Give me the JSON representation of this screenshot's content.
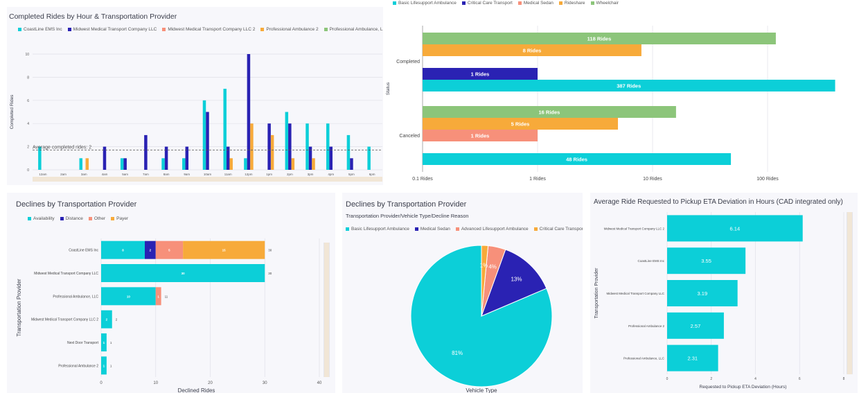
{
  "colors": {
    "teal": "#0ccfd8",
    "navy": "#2a22b3",
    "salmon": "#f7907a",
    "orange": "#f7aa3a",
    "green": "#8cc57a",
    "grid": "#e0e0e8",
    "text": "#3a3d4a"
  },
  "panel1": {
    "title": "Completed Rides by Hour & Transportation Provider",
    "legend": [
      "CoastLine EMS Inc",
      "Midwest Medical Transport Company LLC",
      "Midwest Medical Transport Company LLC 2",
      "Professional Ambulance 2",
      "Professional Ambulance, LLC"
    ],
    "chart_data": {
      "type": "bar",
      "title": "Completed Rides by Hour & Transportation Provider",
      "ylabel": "Completed Rides",
      "xlabel": "",
      "ylim": [
        0,
        10
      ],
      "yticks": [
        0,
        2,
        4,
        6,
        8,
        10
      ],
      "categories": [
        "12am",
        "2am",
        "3am",
        "4am",
        "5am",
        "7am",
        "8am",
        "9am",
        "10am",
        "11am",
        "12pm",
        "1pm",
        "2pm",
        "3pm",
        "4pm",
        "5pm",
        "6pm"
      ],
      "annotation": "Average completed rides: 2",
      "average": 1.7,
      "series": [
        {
          "name": "CoastLine EMS Inc",
          "values": [
            2,
            0,
            1,
            0,
            1,
            0,
            1,
            1,
            6,
            7,
            1,
            0,
            5,
            4,
            4,
            3,
            2
          ]
        },
        {
          "name": "Midwest Medical Transport Company LLC",
          "values": [
            0,
            0,
            0,
            2,
            1,
            3,
            2,
            2,
            5,
            2,
            10,
            4,
            4,
            2,
            2,
            1,
            0
          ]
        },
        {
          "name": "Professional Ambulance 2",
          "values": [
            0,
            0,
            1,
            0,
            0,
            0,
            0,
            0,
            0,
            1,
            4,
            3,
            1,
            1,
            0,
            0,
            0
          ]
        }
      ]
    }
  },
  "panel2": {
    "legend": [
      "Basic Lifesupport Ambulance",
      "Critical Care Transport",
      "Medical Sedan",
      "Rideshare",
      "Wheelchair"
    ],
    "chart_data": {
      "type": "bar",
      "orientation": "horizontal",
      "scale": "log",
      "ylabel": "Status",
      "categories": [
        "Completed",
        "Canceled"
      ],
      "xticks": [
        "0.1 Rides",
        "1 Rides",
        "10 Rides",
        "100 Rides"
      ],
      "bars": [
        {
          "status": "Completed",
          "series": "Wheelchair",
          "value": 118,
          "label": "118 Rides"
        },
        {
          "status": "Completed",
          "series": "Rideshare",
          "value": 8,
          "label": "8 Rides"
        },
        {
          "status": "Completed",
          "series": "Critical Care Transport",
          "value": 1,
          "label": "1 Rides"
        },
        {
          "status": "Completed",
          "series": "Basic Lifesupport Ambulance",
          "value": 387,
          "label": "387 Rides"
        },
        {
          "status": "Canceled",
          "series": "Wheelchair",
          "value": 16,
          "label": "16 Rides"
        },
        {
          "status": "Canceled",
          "series": "Rideshare",
          "value": 5,
          "label": "5 Rides"
        },
        {
          "status": "Canceled",
          "series": "Medical Sedan",
          "value": 1,
          "label": "1 Rides"
        },
        {
          "status": "Canceled",
          "series": "Basic Lifesupport Ambulance",
          "value": 48,
          "label": "48 Rides"
        }
      ]
    }
  },
  "panel3": {
    "title": "Declines by Transportation Provider",
    "legend": [
      "Availability",
      "Distance",
      "Other",
      "Payer"
    ],
    "chart_data": {
      "type": "bar",
      "orientation": "horizontal",
      "stacked": true,
      "xlabel": "Declined Rides",
      "ylabel": "Transportation Provider",
      "xlim": [
        0,
        40
      ],
      "xticks": [
        0,
        10,
        20,
        30,
        40
      ],
      "categories": [
        "CoastLine EMS Inc",
        "Midwest Medical Transport Company LLC",
        "Professional Ambulance, LLC",
        "Midwest Medical Transport Company LLC 2",
        "Next Door Transport",
        "Professional Ambulance 2"
      ],
      "series": [
        {
          "name": "Availability",
          "values": [
            8,
            30,
            10,
            2,
            1,
            1
          ]
        },
        {
          "name": "Distance",
          "values": [
            2,
            0,
            0,
            0,
            0,
            0
          ]
        },
        {
          "name": "Other",
          "values": [
            5,
            0,
            1,
            0,
            0,
            0
          ]
        },
        {
          "name": "Payer",
          "values": [
            15,
            0,
            0,
            0,
            0,
            0
          ]
        }
      ],
      "totals": [
        30,
        30,
        11,
        2,
        1,
        1
      ]
    }
  },
  "panel4": {
    "title": "Declines by Transportation Provider",
    "subtitle": "Transportation Provider/Vehicle Type/Decline Reason",
    "legend": [
      "Basic Lifesupport Ambulance",
      "Medical Sedan",
      "Advanced Lifesupport Ambulance",
      "Critical Care Transport"
    ],
    "chart_data": {
      "type": "pie",
      "xlabel": "Vehicle Type",
      "slices": [
        {
          "name": "Basic Lifesupport Ambulance",
          "value": 81,
          "label": "81%"
        },
        {
          "name": "Medical Sedan",
          "value": 13,
          "label": "13%"
        },
        {
          "name": "Advanced Lifesupport Ambulance",
          "value": 4,
          "label": "4%"
        },
        {
          "name": "Critical Care Transport",
          "value": 1.5,
          "label": "1%"
        }
      ]
    }
  },
  "panel5": {
    "title": "Average Ride Requested to Pickup ETA Deviation in Hours (CAD integrated only)",
    "chart_data": {
      "type": "bar",
      "orientation": "horizontal",
      "xlabel": "Requested to Pickup ETA Deviation (Hours)",
      "ylabel": "Transportation Provider",
      "xlim": [
        0,
        8
      ],
      "xticks": [
        0,
        2,
        4,
        6,
        8
      ],
      "categories": [
        "Midwest Medical Transport Company LLC 2",
        "CoastLine EMS Inc",
        "Midwest Medical Transport Company LLC",
        "Professional Ambulance 2",
        "Professional Ambulance, LLC"
      ],
      "values": [
        6.14,
        3.55,
        3.19,
        2.57,
        2.31
      ],
      "labels": [
        "6.14",
        "3.55",
        "3.19",
        "2.57",
        "2.31"
      ]
    }
  }
}
